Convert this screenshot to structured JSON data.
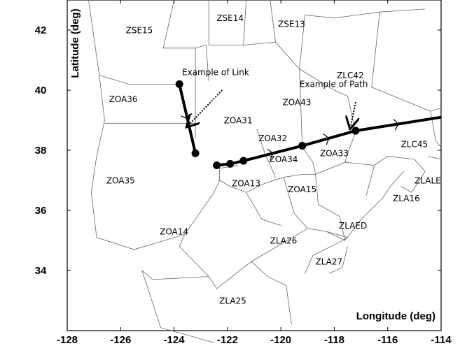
{
  "chart_data": {
    "type": "map-plot",
    "xlabel": "Longitude (deg)",
    "ylabel": "Latitude (deg)",
    "xlim": [
      -128,
      -114
    ],
    "ylim": [
      32,
      43
    ],
    "x_ticks": [
      -128,
      -126,
      -124,
      -122,
      -120,
      -118,
      -116,
      -114
    ],
    "y_ticks": [
      34,
      36,
      38,
      40,
      42
    ],
    "grid": false,
    "boundaries": [
      [
        [
          -127.2,
          43
        ],
        [
          -126.8,
          40.5
        ]
      ],
      [
        [
          -126.8,
          40.5
        ],
        [
          -125.7,
          40.2
        ],
        [
          -123.8,
          40.2
        ]
      ],
      [
        [
          -124.0,
          43
        ],
        [
          -124.4,
          41.4
        ],
        [
          -123.2,
          41.4
        ],
        [
          -123.2,
          38.4
        ]
      ],
      [
        [
          -123.2,
          41.4
        ],
        [
          -122.8,
          41.5
        ],
        [
          -122.7,
          40.3
        ]
      ],
      [
        [
          -122.7,
          43
        ],
        [
          -122.7,
          41.5
        ]
      ],
      [
        [
          -122.7,
          41.5
        ],
        [
          -121.4,
          41.5
        ],
        [
          -121.3,
          43
        ]
      ],
      [
        [
          -121.4,
          41.5
        ],
        [
          -120.2,
          41.6
        ],
        [
          -119.3,
          40.7
        ]
      ],
      [
        [
          -120.4,
          43
        ],
        [
          -120.2,
          41.6
        ]
      ],
      [
        [
          -119.1,
          42.5
        ],
        [
          -119.3,
          40.7
        ],
        [
          -119.2,
          38.1
        ]
      ],
      [
        [
          -119.3,
          40.7
        ],
        [
          -118.0,
          40.0
        ]
      ],
      [
        [
          -119.1,
          42.5
        ],
        [
          -118.0,
          42.4
        ],
        [
          -116.3,
          42.6
        ],
        [
          -114.6,
          42.7
        ]
      ],
      [
        [
          -118.0,
          40.0
        ],
        [
          -117.5,
          39.8
        ],
        [
          -117.2,
          38.6
        ]
      ],
      [
        [
          -116.3,
          42.6
        ],
        [
          -116.6,
          40.1
        ],
        [
          -115.5,
          39.7
        ],
        [
          -114.4,
          39.3
        ]
      ],
      [
        [
          -114.4,
          39.3
        ],
        [
          -114.0,
          39.4
        ]
      ],
      [
        [
          -114.4,
          39.3
        ],
        [
          -114.2,
          38.3
        ],
        [
          -114.0,
          38.1
        ]
      ],
      [
        [
          -126.8,
          40.5
        ],
        [
          -126.6,
          39.0
        ],
        [
          -126.9,
          37.8
        ]
      ],
      [
        [
          -126.6,
          38.9
        ],
        [
          -124.8,
          38.9
        ],
        [
          -123.2,
          38.9
        ]
      ],
      [
        [
          -126.9,
          37.8
        ],
        [
          -127.1,
          36.6
        ],
        [
          -126.9,
          35.1
        ]
      ],
      [
        [
          -126.9,
          35.1
        ],
        [
          -125.5,
          34.7
        ],
        [
          -123.6,
          35.2
        ]
      ],
      [
        [
          -123.6,
          35.2
        ],
        [
          -122.5,
          36.6
        ],
        [
          -122.3,
          37.0
        ]
      ],
      [
        [
          -122.3,
          37.0
        ],
        [
          -122.3,
          37.4
        ],
        [
          -121.6,
          37.5
        ]
      ],
      [
        [
          -122.3,
          37.0
        ],
        [
          -121.9,
          36.8
        ],
        [
          -121.3,
          36.6
        ]
      ],
      [
        [
          -121.3,
          36.6
        ],
        [
          -120.6,
          36.9
        ],
        [
          -119.9,
          37.1
        ]
      ],
      [
        [
          -121.3,
          36.6
        ],
        [
          -120.7,
          35.7
        ],
        [
          -120.0,
          35.5
        ]
      ],
      [
        [
          -119.9,
          37.1
        ],
        [
          -119.5,
          35.9
        ],
        [
          -119.0,
          35.4
        ]
      ],
      [
        [
          -123.6,
          35.2
        ],
        [
          -123.8,
          34.8
        ],
        [
          -122.7,
          33.8
        ]
      ],
      [
        [
          -122.7,
          33.8
        ],
        [
          -122.4,
          33.4
        ],
        [
          -121.1,
          34.3
        ]
      ],
      [
        [
          -121.1,
          34.3
        ],
        [
          -119.0,
          35.4
        ]
      ],
      [
        [
          -125.2,
          34.0
        ],
        [
          -124.8,
          33.7
        ],
        [
          -122.7,
          33.8
        ]
      ],
      [
        [
          -125.2,
          34.0
        ],
        [
          -124.5,
          32.1
        ],
        [
          -122.5,
          31.6
        ]
      ],
      [
        [
          -121.1,
          34.3
        ],
        [
          -120.5,
          33.8
        ],
        [
          -119.8,
          33.5
        ],
        [
          -119.6,
          32.2
        ]
      ],
      [
        [
          -119.0,
          35.4
        ],
        [
          -118.3,
          35.3
        ],
        [
          -117.6,
          35.0
        ],
        [
          -117.0,
          35.7
        ]
      ],
      [
        [
          -118.8,
          34.5
        ],
        [
          -119.1,
          33.9
        ]
      ],
      [
        [
          -118.8,
          34.5
        ],
        [
          -117.9,
          34.9
        ],
        [
          -117.5,
          35.1
        ],
        [
          -118.3,
          35.3
        ]
      ],
      [
        [
          -117.5,
          34.8
        ],
        [
          -117.7,
          34.1
        ],
        [
          -118.2,
          33.9
        ]
      ],
      [
        [
          -117.0,
          35.7
        ],
        [
          -116.2,
          36.4
        ],
        [
          -115.9,
          36.8
        ],
        [
          -115.4,
          37.3
        ]
      ],
      [
        [
          -118.7,
          37.2
        ],
        [
          -118.6,
          36.2
        ],
        [
          -117.8,
          35.8
        ],
        [
          -117.6,
          35.0
        ]
      ],
      [
        [
          -118.7,
          37.2
        ],
        [
          -117.6,
          37.6
        ],
        [
          -116.5,
          37.5
        ],
        [
          -116.8,
          36.5
        ]
      ],
      [
        [
          -116.5,
          37.5
        ],
        [
          -116.0,
          37.8
        ],
        [
          -115.0,
          37.7
        ],
        [
          -114.6,
          37.3
        ]
      ],
      [
        [
          -114.6,
          37.3
        ],
        [
          -115.1,
          36.6
        ],
        [
          -115.5,
          36.8
        ]
      ],
      [
        [
          -119.9,
          37.1
        ],
        [
          -119.2,
          37.2
        ],
        [
          -118.7,
          37.2
        ]
      ],
      [
        [
          -119.2,
          38.1
        ],
        [
          -118.8,
          37.6
        ],
        [
          -118.7,
          37.2
        ]
      ],
      [
        [
          -117.2,
          38.6
        ],
        [
          -117.5,
          37.9
        ],
        [
          -117.6,
          37.6
        ]
      ],
      [
        [
          -114.5,
          37.8
        ],
        [
          -114.0,
          37.7
        ]
      ],
      [
        [
          -120.9,
          38.7
        ],
        [
          -120.6,
          37.9
        ],
        [
          -120.2,
          37.1
        ]
      ]
    ],
    "links": [
      {
        "points": [
          [
            -123.8,
            40.2
          ],
          [
            -123.2,
            37.9
          ]
        ]
      },
      {
        "points": [
          [
            -122.4,
            37.5
          ],
          [
            -121.9,
            37.55
          ],
          [
            -121.4,
            37.65
          ],
          [
            -119.2,
            38.15
          ],
          [
            -117.2,
            38.65
          ],
          [
            -114.0,
            39.1
          ]
        ]
      }
    ],
    "nodes": [
      [
        -123.8,
        40.2
      ],
      [
        -123.2,
        37.9
      ],
      [
        -122.4,
        37.5
      ],
      [
        -121.9,
        37.55
      ],
      [
        -121.4,
        37.65
      ],
      [
        -119.2,
        38.15
      ],
      [
        -117.2,
        38.65
      ]
    ],
    "sector_labels": [
      {
        "text": "ZSE15",
        "x": -125.3,
        "y": 41.9
      },
      {
        "text": "ZSE14",
        "x": -121.9,
        "y": 42.3
      },
      {
        "text": "ZSE13",
        "x": -119.6,
        "y": 42.1
      },
      {
        "text": "ZOA36",
        "x": -125.9,
        "y": 39.6
      },
      {
        "text": "ZOA31",
        "x": -121.6,
        "y": 38.9
      },
      {
        "text": "ZOA43",
        "x": -119.4,
        "y": 39.5
      },
      {
        "text": "ZLC42",
        "x": -117.4,
        "y": 40.4
      },
      {
        "text": "ZOA32",
        "x": -120.3,
        "y": 38.3
      },
      {
        "text": "ZOA34",
        "x": -119.9,
        "y": 37.6
      },
      {
        "text": "ZOA33",
        "x": -118.0,
        "y": 37.8
      },
      {
        "text": "ZLC45",
        "x": -115.0,
        "y": 38.1
      },
      {
        "text": "ZOA35",
        "x": -126.0,
        "y": 36.9
      },
      {
        "text": "ZOA13",
        "x": -121.3,
        "y": 36.8
      },
      {
        "text": "ZOA15",
        "x": -119.2,
        "y": 36.6
      },
      {
        "text": "ZLALE",
        "x": -114.5,
        "y": 36.9
      },
      {
        "text": "ZLA16",
        "x": -115.3,
        "y": 36.3
      },
      {
        "text": "ZOA14",
        "x": -124.0,
        "y": 35.2
      },
      {
        "text": "ZLAED",
        "x": -117.3,
        "y": 35.4
      },
      {
        "text": "ZLA26",
        "x": -119.9,
        "y": 34.9
      },
      {
        "text": "ZLA27",
        "x": -118.2,
        "y": 34.2
      },
      {
        "text": "ZLA25",
        "x": -121.8,
        "y": 32.9
      }
    ],
    "annotations": [
      {
        "text": "Example of Link",
        "x": -123.7,
        "y": 40.5,
        "arrow_from": [
          -122.2,
          40.0
        ],
        "arrow_to": [
          -123.5,
          38.8
        ]
      },
      {
        "text": "Example of Path",
        "x": -119.3,
        "y": 40.1,
        "arrow_from": [
          -117.2,
          39.6
        ],
        "arrow_to": [
          -117.4,
          38.75
        ]
      }
    ],
    "legend": "none"
  }
}
